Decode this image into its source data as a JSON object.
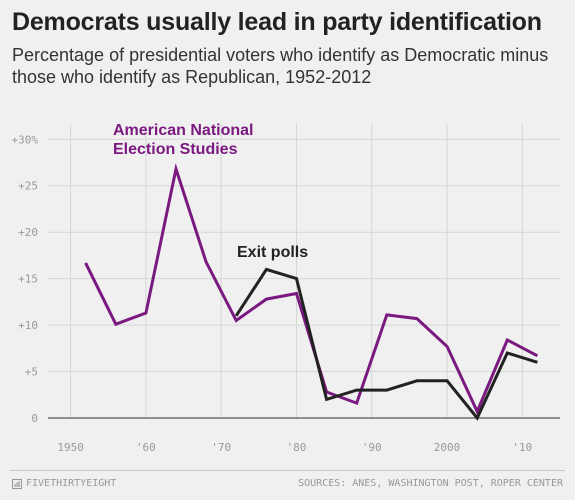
{
  "header": {
    "title": "Democrats usually lead in party identification",
    "subtitle": "Percentage of presidential voters who identify as Democratic minus those who identify as Republican, 1952-2012"
  },
  "footer": {
    "brand": "FIVETHIRTYEIGHT",
    "brand_icon": "five-thirty-eight-logo-icon",
    "source": "SOURCES: ANES, WASHINGTON POST, ROPER CENTER"
  },
  "colors": {
    "background": "#f0f0f0",
    "anes": "#7a1a80",
    "exit_polls": "#222222",
    "grid": "#d6d6d6"
  },
  "chart_data": {
    "type": "line",
    "title": "Democrats usually lead in party identification",
    "subtitle": "Percentage of presidential voters who identify as Democratic minus those who identify as Republican, 1952-2012",
    "xlim": [
      1947,
      2015
    ],
    "ylim": [
      0,
      31
    ],
    "x_ticks": [
      1950,
      1960,
      1970,
      1980,
      1990,
      2000,
      2010
    ],
    "x_tick_labels": [
      "1950",
      "'60",
      "'70",
      "'80",
      "'90",
      "2000",
      "'10"
    ],
    "y_ticks": [
      0,
      5,
      10,
      15,
      20,
      25,
      30
    ],
    "y_tick_labels": [
      "0",
      "+5",
      "+10",
      "+15",
      "+20",
      "+25",
      "+30%"
    ],
    "grid": true,
    "series": [
      {
        "name": "American National Election Studies",
        "x": [
          1952,
          1956,
          1960,
          1964,
          1968,
          1972,
          1976,
          1980,
          1984,
          1988,
          1992,
          1996,
          2000,
          2004,
          2008,
          2012
        ],
        "values": [
          16.7,
          10.1,
          11.3,
          26.8,
          16.8,
          10.5,
          12.8,
          13.4,
          2.8,
          1.6,
          11.1,
          10.7,
          7.7,
          0.7,
          8.4,
          6.7
        ]
      },
      {
        "name": "Exit polls",
        "x": [
          1972,
          1976,
          1980,
          1984,
          1988,
          1992,
          1996,
          2000,
          2004,
          2008,
          2012
        ],
        "values": [
          11,
          16,
          15,
          2,
          3,
          3,
          4,
          4,
          0,
          7,
          6
        ]
      }
    ],
    "annotations": {
      "anes_line1": "American National",
      "anes_line2": "Election Studies",
      "exit": "Exit polls"
    }
  }
}
